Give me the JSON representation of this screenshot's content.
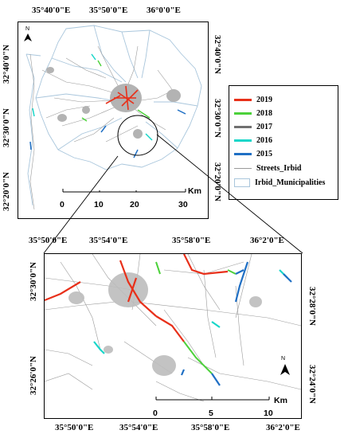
{
  "top_map": {
    "x_ticks": [
      "35°40'0\"E",
      "35°50'0\"E",
      "36°0'0\"E"
    ],
    "y_ticks": [
      "32°40'0\"N",
      "32°30'0\"N",
      "32°20'0\"N"
    ],
    "scale": {
      "unit": "Km",
      "labels": [
        "0",
        "10",
        "20",
        "30"
      ]
    },
    "north_label": "N"
  },
  "bottom_map": {
    "x_ticks": [
      "35°50'0\"E",
      "35°54'0\"E",
      "35°58'0\"E",
      "36°2'0\"E"
    ],
    "left_y_ticks": [
      "32°30'0\"N",
      "32°26'0\"N"
    ],
    "right_y_ticks": [
      "32°28'0\"N",
      "32°24'0\"N"
    ],
    "scale": {
      "unit": "Km",
      "labels": [
        "0",
        "5",
        "10"
      ]
    },
    "north_label": "N"
  },
  "legend": {
    "items": [
      {
        "label": "2019",
        "color": "#e8301a",
        "symbol": "line"
      },
      {
        "label": "2018",
        "color": "#4cd13a",
        "symbol": "line"
      },
      {
        "label": "2017",
        "color": "#707070",
        "symbol": "line"
      },
      {
        "label": "2016",
        "color": "#18d6c9",
        "symbol": "line"
      },
      {
        "label": "2015",
        "color": "#1f6fc4",
        "symbol": "line"
      },
      {
        "label": "Streets_Irbid",
        "color": "#9a9a9a",
        "symbol": "thin-line"
      },
      {
        "label": "Irbid_Municipalities",
        "color": "#a9c6dc",
        "symbol": "box"
      }
    ]
  }
}
